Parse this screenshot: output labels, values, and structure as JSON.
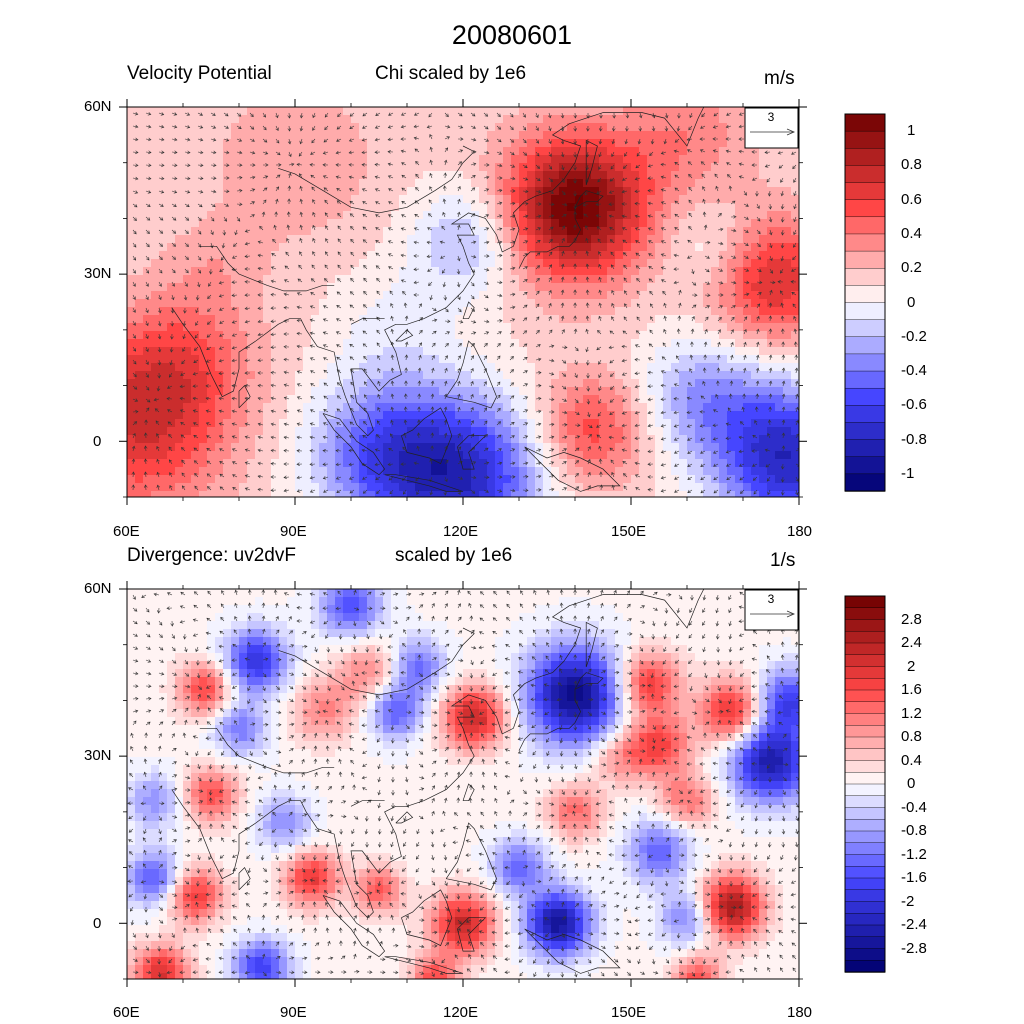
{
  "title": "20080601",
  "panels": [
    {
      "left_title": "Velocity Potential",
      "center_title": "Chi scaled by 1e6",
      "units": "m/s",
      "vector_ref_label": "3",
      "lat_ticks": [
        "60N",
        "30N",
        "0"
      ],
      "lon_ticks": [
        "60E",
        "90E",
        "120E",
        "150E",
        "180"
      ],
      "colorbar_labels": [
        "1",
        "0.8",
        "0.6",
        "0.4",
        "0.2",
        "0",
        "-0.2",
        "-0.4",
        "-0.6",
        "-0.8",
        "-1"
      ],
      "colorbar_levels": 22,
      "max_value": 1.1
    },
    {
      "left_title": "Divergence: uv2dvF",
      "center_title": "scaled by 1e6",
      "units": "1/s",
      "vector_ref_label": "3",
      "lat_ticks": [
        "60N",
        "30N",
        "0"
      ],
      "lon_ticks": [
        "60E",
        "90E",
        "120E",
        "150E",
        "180"
      ],
      "colorbar_labels": [
        "2.8",
        "2.4",
        "2",
        "1.6",
        "1.2",
        "0.8",
        "0.4",
        "0",
        "-0.4",
        "-0.8",
        "-1.2",
        "-1.6",
        "-2",
        "-2.4",
        "-2.8"
      ],
      "colorbar_levels": 32,
      "max_value": 3.2
    }
  ],
  "field_centers": [
    [
      {
        "lon": 140,
        "lat": 42,
        "amp": 1.0,
        "r": 9
      },
      {
        "lon": 62,
        "lat": 3,
        "amp": 0.55,
        "r": 11
      },
      {
        "lon": 70,
        "lat": 15,
        "amp": 0.3,
        "r": 9
      },
      {
        "lon": 175,
        "lat": 29,
        "amp": 0.6,
        "r": 8
      },
      {
        "lon": 143,
        "lat": 2,
        "amp": 0.45,
        "r": 7
      },
      {
        "lon": 120,
        "lat": -6,
        "amp": -0.85,
        "r": 10
      },
      {
        "lon": 105,
        "lat": -2,
        "amp": -0.55,
        "r": 9
      },
      {
        "lon": 178,
        "lat": -3,
        "amp": -0.9,
        "r": 9
      },
      {
        "lon": 163,
        "lat": 8,
        "amp": -0.4,
        "r": 8
      },
      {
        "lon": 121,
        "lat": 36,
        "amp": -0.35,
        "r": 7
      },
      {
        "lon": 165,
        "lat": 34,
        "amp": -0.22,
        "r": 6
      },
      {
        "lon": 108,
        "lat": 20,
        "amp": -0.15,
        "r": 8
      },
      {
        "lon": 90,
        "lat": 50,
        "amp": 0.18,
        "r": 10
      },
      {
        "lon": 76,
        "lat": 32,
        "amp": 0.12,
        "r": 6
      },
      {
        "lon": 160,
        "lat": 55,
        "amp": 0.25,
        "r": 8
      }
    ],
    [
      {
        "lon": 140,
        "lat": 41,
        "amp": -3.0,
        "r": 6
      },
      {
        "lon": 153,
        "lat": 43,
        "amp": 1.8,
        "r": 4
      },
      {
        "lon": 168,
        "lat": 38,
        "amp": 2.0,
        "r": 4
      },
      {
        "lon": 175,
        "lat": 29,
        "amp": -2.6,
        "r": 5
      },
      {
        "lon": 178,
        "lat": 40,
        "amp": -1.8,
        "r": 4
      },
      {
        "lon": 122,
        "lat": 37,
        "amp": 2.2,
        "r": 4
      },
      {
        "lon": 120,
        "lat": 0,
        "amp": 2.2,
        "r": 4
      },
      {
        "lon": 137,
        "lat": 0,
        "amp": -2.8,
        "r": 4
      },
      {
        "lon": 168,
        "lat": 3,
        "amp": 2.6,
        "r": 4
      },
      {
        "lon": 100,
        "lat": 57,
        "amp": -1.6,
        "r": 4
      },
      {
        "lon": 83,
        "lat": 47,
        "amp": -2.0,
        "r": 4
      },
      {
        "lon": 74,
        "lat": 42,
        "amp": 1.6,
        "r": 3.5
      },
      {
        "lon": 108,
        "lat": 38,
        "amp": -1.5,
        "r": 3.5
      },
      {
        "lon": 112,
        "lat": 46,
        "amp": -1.3,
        "r": 3.5
      },
      {
        "lon": 65,
        "lat": 8,
        "amp": -1.6,
        "r": 3.5
      },
      {
        "lon": 72,
        "lat": 5,
        "amp": 1.8,
        "r": 3.5
      },
      {
        "lon": 93,
        "lat": 8,
        "amp": 1.8,
        "r": 3.5
      },
      {
        "lon": 84,
        "lat": -8,
        "amp": -1.8,
        "r": 3.5
      },
      {
        "lon": 66,
        "lat": -9,
        "amp": 2.0,
        "r": 3.5
      },
      {
        "lon": 140,
        "lat": 20,
        "amp": 1.2,
        "r": 3.5
      },
      {
        "lon": 155,
        "lat": 32,
        "amp": 1.6,
        "r": 4
      },
      {
        "lon": 75,
        "lat": 23,
        "amp": 1.5,
        "r": 3.5
      },
      {
        "lon": 80,
        "lat": 35,
        "amp": -1.2,
        "r": 3.5
      },
      {
        "lon": 88,
        "lat": 18,
        "amp": -1.0,
        "r": 3.5
      },
      {
        "lon": 130,
        "lat": 10,
        "amp": -1.4,
        "r": 3.5
      },
      {
        "lon": 155,
        "lat": 13,
        "amp": -1.4,
        "r": 4
      },
      {
        "lon": 160,
        "lat": 22,
        "amp": 1.2,
        "r": 3.5
      },
      {
        "lon": 65,
        "lat": 22,
        "amp": -1.0,
        "r": 3.5
      },
      {
        "lon": 160,
        "lat": 1,
        "amp": -1.2,
        "r": 3.5
      },
      {
        "lon": 95,
        "lat": 38,
        "amp": 1.0,
        "r": 4
      },
      {
        "lon": 103,
        "lat": 45,
        "amp": 1.0,
        "r": 4
      },
      {
        "lon": 148,
        "lat": 30,
        "amp": 0.9,
        "r": 3.5
      },
      {
        "lon": 105,
        "lat": 6,
        "amp": 1.4,
        "r": 3
      },
      {
        "lon": 115,
        "lat": -10,
        "amp": 1.5,
        "r": 3
      },
      {
        "lon": 162,
        "lat": -10,
        "amp": 1.5,
        "r": 3
      }
    ]
  ]
}
